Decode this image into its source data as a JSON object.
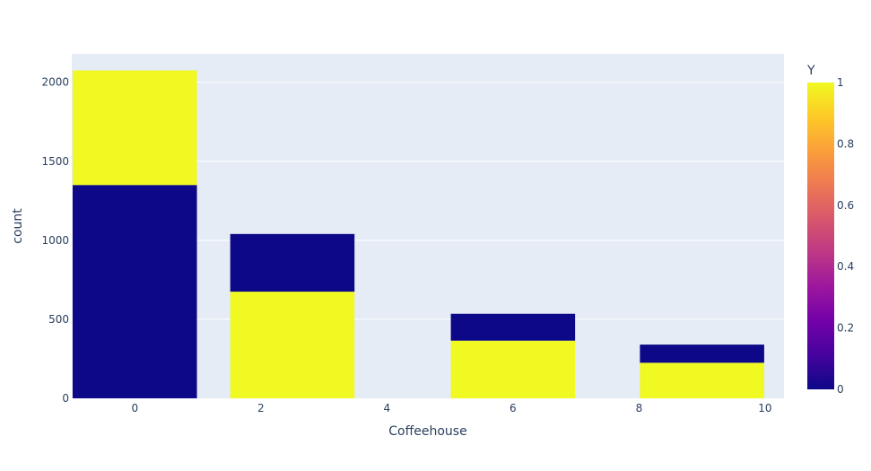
{
  "chart_data": {
    "type": "bar",
    "barmode": "stack",
    "xlabel": "Coffeehouse",
    "ylabel": "count",
    "xlim": [
      -1,
      10.3
    ],
    "ylim": [
      0,
      2180
    ],
    "x_ticks": [
      0,
      2,
      4,
      6,
      8,
      10
    ],
    "y_ticks": [
      0,
      500,
      1000,
      1500,
      2000
    ],
    "bar_width": 2,
    "series": [
      {
        "y_value": 0,
        "x": [
          0,
          2.5,
          6,
          9
        ],
        "values": [
          1350,
          365,
          170,
          115
        ]
      },
      {
        "y_value": 1,
        "x": [
          0,
          2.5,
          6,
          9
        ],
        "values": [
          725,
          675,
          365,
          225
        ]
      }
    ],
    "stack_order": [
      [
        0,
        1
      ],
      [
        1,
        0
      ],
      [
        1,
        0
      ],
      [
        1,
        0
      ]
    ],
    "colorbar": {
      "title": "Y",
      "range": [
        0,
        1
      ],
      "ticks": [
        0,
        0.2,
        0.4,
        0.6,
        0.8,
        1
      ],
      "colorscale": [
        "#0d0887",
        "#46039f",
        "#7201a8",
        "#9c179e",
        "#bd3786",
        "#d8576b",
        "#ed7953",
        "#fb9f3a",
        "#fdca26",
        "#f0f921"
      ]
    },
    "colors": {
      "plot_bg": "#e5ecf6",
      "grid": "#ffffff",
      "text": "#2a3f5f"
    }
  }
}
